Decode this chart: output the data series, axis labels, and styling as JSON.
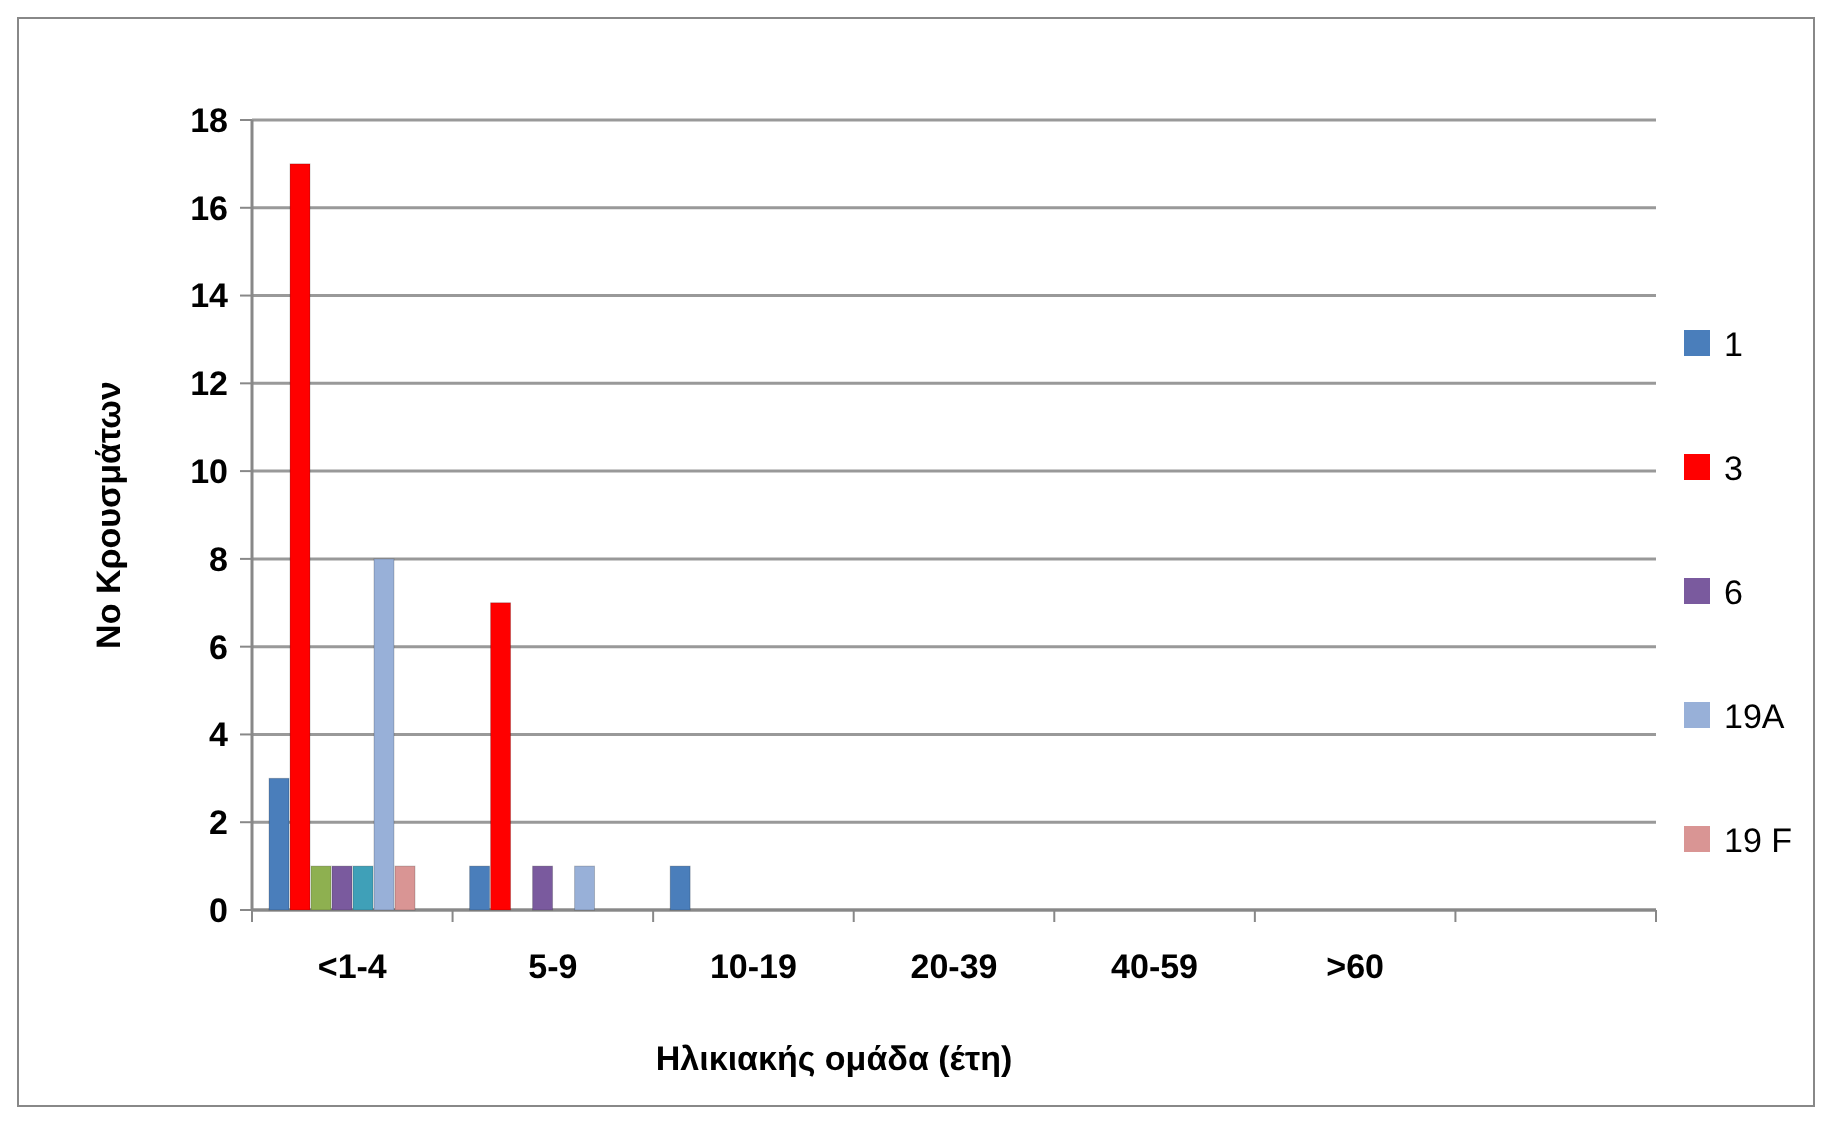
{
  "chart_data": {
    "type": "bar",
    "xlabel": "Ηλικιακής ομάδα (έτη)",
    "ylabel": "No Κρουσμάτων",
    "categories": [
      "<1-4",
      "5-9",
      "10-19",
      "20-39",
      "40-59",
      ">60",
      null
    ],
    "series": [
      {
        "name": "1",
        "color": "#4a7ebb",
        "values": [
          3,
          1,
          1,
          null,
          null,
          null,
          null
        ]
      },
      {
        "name": "3",
        "color": "#ff0000",
        "values": [
          17,
          7,
          null,
          null,
          null,
          null,
          null
        ]
      },
      {
        "color": "#8eb050",
        "values": [
          1,
          null,
          null,
          null,
          null,
          null,
          null
        ]
      },
      {
        "name": "6",
        "color": "#7a5a9e",
        "values": [
          1,
          1,
          null,
          null,
          null,
          null,
          null
        ]
      },
      {
        "color": "#3fa0b8",
        "values": [
          1,
          null,
          null,
          null,
          null,
          null,
          null
        ]
      },
      {
        "name": "19A",
        "color": "#98b0d8",
        "values": [
          8,
          1,
          null,
          null,
          null,
          null,
          null
        ]
      },
      {
        "name": "19 F",
        "color": "#d99594",
        "values": [
          1,
          null,
          null,
          null,
          null,
          null,
          null
        ]
      }
    ],
    "ylim": [
      0,
      18
    ],
    "yticks": [
      0,
      2,
      4,
      6,
      8,
      10,
      12,
      14,
      16,
      18
    ],
    "grid": "y",
    "legend": "right"
  }
}
